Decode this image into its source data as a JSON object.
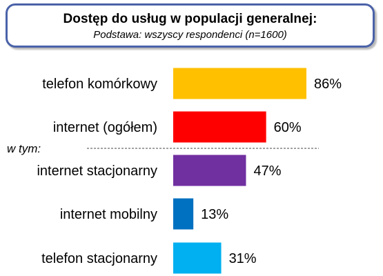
{
  "header": {
    "title": "Dostęp do usług w populacji generalnej:",
    "subtitle": "Podstawa: wszyscy respondenci (n=1600)"
  },
  "chart_data": {
    "type": "bar",
    "orientation": "horizontal",
    "categories": [
      "telefon komórkowy",
      "internet (ogółem)",
      "internet stacjonarny",
      "internet mobilny",
      "telefon stacjonarny"
    ],
    "values": [
      86,
      60,
      47,
      13,
      31
    ],
    "value_labels": [
      "86%",
      "60%",
      "47%",
      "13%",
      "31%"
    ],
    "colors": [
      "#ffc000",
      "#ff0000",
      "#7030a0",
      "#0070c0",
      "#00b0f0"
    ],
    "subgroup_label": "w tym:",
    "xlim": [
      0,
      100
    ],
    "grid": false,
    "legend": "none"
  }
}
